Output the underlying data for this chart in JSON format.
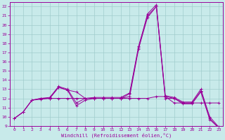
{
  "bg_color": "#c8eaea",
  "grid_color": "#a0cccc",
  "line_color": "#990099",
  "xlim": [
    -0.5,
    23.5
  ],
  "ylim": [
    9,
    22.5
  ],
  "xticks": [
    0,
    1,
    2,
    3,
    4,
    5,
    6,
    7,
    8,
    9,
    10,
    11,
    12,
    13,
    14,
    15,
    16,
    17,
    18,
    19,
    20,
    21,
    22,
    23
  ],
  "yticks": [
    9,
    10,
    11,
    12,
    13,
    14,
    15,
    16,
    17,
    18,
    19,
    20,
    21,
    22
  ],
  "xlabel": "Windchill (Refroidissement éolien,°C)",
  "lines": [
    {
      "x": [
        0,
        1,
        2,
        3,
        4,
        5,
        6,
        7,
        8,
        9,
        10,
        11,
        12,
        13,
        14,
        15,
        16,
        17,
        18,
        19,
        20,
        21,
        22,
        23
      ],
      "y": [
        9.8,
        10.5,
        11.8,
        11.9,
        12.0,
        13.2,
        12.9,
        11.2,
        11.8,
        12.0,
        12.0,
        12.0,
        12.0,
        12.5,
        17.5,
        21.2,
        22.2,
        12.2,
        12.0,
        11.5,
        11.5,
        12.8,
        9.8,
        8.8
      ]
    },
    {
      "x": [
        0,
        1,
        2,
        3,
        4,
        5,
        6,
        7,
        8,
        9,
        10,
        11,
        12,
        13,
        14,
        15,
        16,
        17,
        18,
        19,
        20,
        21,
        22,
        23
      ],
      "y": [
        9.8,
        10.5,
        11.8,
        12.0,
        12.1,
        13.3,
        13.0,
        11.5,
        12.0,
        12.1,
        12.1,
        12.1,
        12.1,
        12.6,
        17.7,
        21.0,
        22.0,
        12.3,
        12.1,
        11.6,
        11.6,
        13.0,
        10.0,
        8.9
      ]
    },
    {
      "x": [
        3,
        4,
        5,
        6,
        7,
        8,
        9,
        10,
        11,
        12,
        13,
        14,
        15,
        16,
        17,
        18,
        19,
        20,
        21,
        22,
        23
      ],
      "y": [
        12.0,
        12.0,
        13.2,
        12.9,
        12.7,
        12.0,
        12.0,
        12.0,
        12.0,
        12.0,
        12.2,
        17.4,
        20.8,
        22.0,
        12.0,
        12.0,
        11.4,
        11.4,
        12.7,
        9.7,
        8.8
      ]
    },
    {
      "x": [
        0,
        1,
        2,
        3,
        4,
        5,
        6,
        7,
        8,
        9,
        10,
        11,
        12,
        13,
        14,
        15,
        16,
        17,
        18,
        19,
        20,
        21,
        22,
        23
      ],
      "y": [
        9.8,
        10.5,
        11.8,
        12.0,
        12.0,
        12.0,
        12.0,
        12.0,
        12.0,
        12.0,
        12.0,
        12.0,
        12.0,
        12.0,
        12.0,
        12.0,
        12.2,
        12.2,
        11.5,
        11.5,
        11.5,
        11.5,
        11.5,
        11.5
      ]
    }
  ]
}
